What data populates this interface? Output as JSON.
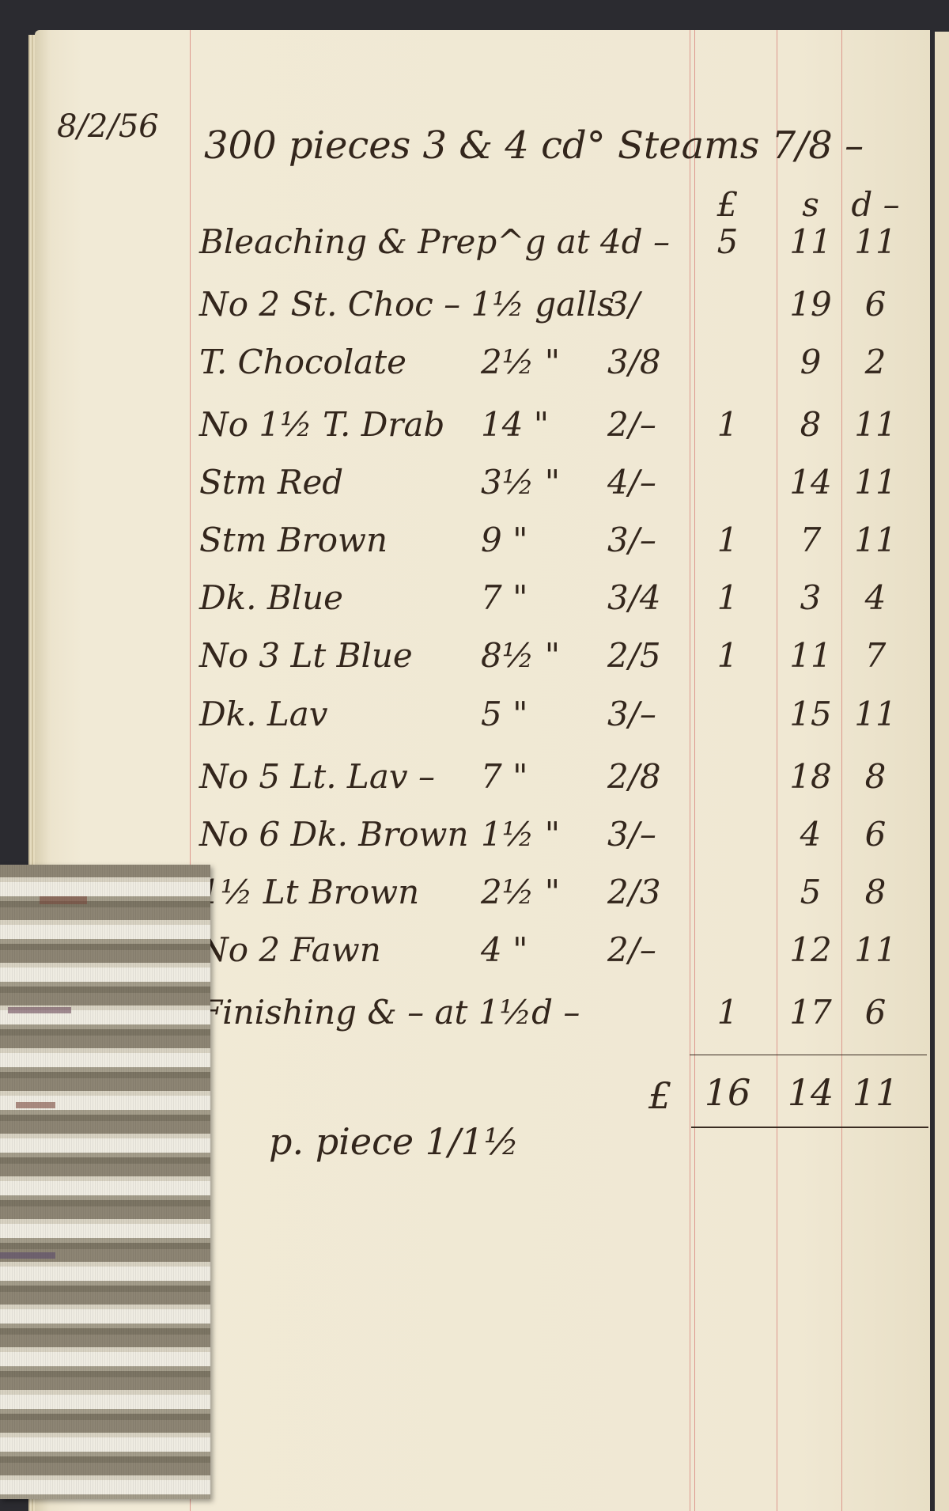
{
  "ledger": {
    "date": "8/2/56",
    "header": "300 pieces 3 & 4 cd° Steams 7/8 –",
    "columns": {
      "pounds": "£",
      "shillings": "s",
      "pence": "d –"
    },
    "rows": [
      {
        "description": "Bleaching & Prep^g at 4d –",
        "qty": "",
        "rate": "",
        "l": "5",
        "s": "11",
        "d": "11"
      },
      {
        "description": "No 2 St. Choc – 1½ galls",
        "qty": "",
        "rate": "3/",
        "l": "",
        "s": "19",
        "d": "6"
      },
      {
        "description": "T. Chocolate",
        "qty": "2½ \"",
        "rate": "3/8",
        "l": "",
        "s": "9",
        "d": "2"
      },
      {
        "description": "No 1½ T. Drab",
        "qty": "14 \"",
        "rate": "2/–",
        "l": "1",
        "s": "8",
        "d": "11"
      },
      {
        "description": "Stm Red",
        "qty": "3½ \"",
        "rate": "4/–",
        "l": "",
        "s": "14",
        "d": "11"
      },
      {
        "description": "Stm Brown",
        "qty": "9 \"",
        "rate": "3/–",
        "l": "1",
        "s": "7",
        "d": "11"
      },
      {
        "description": "Dk. Blue",
        "qty": "7 \"",
        "rate": "3/4",
        "l": "1",
        "s": "3",
        "d": "4"
      },
      {
        "description": "No 3 Lt Blue",
        "qty": "8½ \"",
        "rate": "2/5",
        "l": "1",
        "s": "11",
        "d": "7"
      },
      {
        "description": "Dk. Lav",
        "qty": "5 \"",
        "rate": "3/–",
        "l": "",
        "s": "15",
        "d": "11"
      },
      {
        "description": "No 5 Lt. Lav –",
        "qty": "7 \"",
        "rate": "2/8",
        "l": "",
        "s": "18",
        "d": "8"
      },
      {
        "description": "No 6 Dk. Brown",
        "qty": "1½ \"",
        "rate": "3/–",
        "l": "",
        "s": "4",
        "d": "6"
      },
      {
        "description": "1½ Lt Brown",
        "qty": "2½ \"",
        "rate": "2/3",
        "l": "",
        "s": "5",
        "d": "8"
      },
      {
        "description": "No 2 Fawn",
        "qty": "4 \"",
        "rate": "2/–",
        "l": "",
        "s": "12",
        "d": "11"
      },
      {
        "description": "Finishing & – at 1½d –",
        "qty": "",
        "rate": "",
        "l": "1",
        "s": "17",
        "d": "6"
      }
    ],
    "total": {
      "symbol": "£",
      "l": "16",
      "s": "14",
      "d": "11"
    },
    "footnote": "p. piece 1/1½"
  }
}
